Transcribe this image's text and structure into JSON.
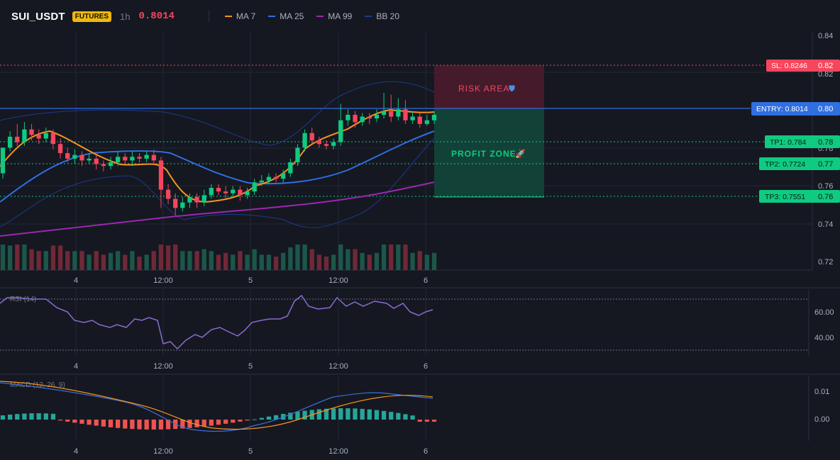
{
  "header": {
    "symbol": "SUI_USDT",
    "badge": "FUTURES",
    "timeframe": "1h",
    "price": "0.8014",
    "legend": [
      {
        "label": "MA 7",
        "color": "#f7931a"
      },
      {
        "label": "MA 25",
        "color": "#2f6fe0"
      },
      {
        "label": "MA 99",
        "color": "#9c27b0"
      },
      {
        "label": "BB 20",
        "color": "#1e3a8a"
      }
    ]
  },
  "main_axis": {
    "ticks": [
      "0.84",
      "0.82",
      "0.80",
      "0.78",
      "0.76",
      "0.74",
      "0.72"
    ]
  },
  "time_axis": {
    "labels": [
      "4",
      "12:00",
      "5",
      "12:00",
      "6"
    ]
  },
  "levels": {
    "sl": "SL: 0.8246",
    "sl_axis": "0.82",
    "entry": "ENTRY: 0.8014",
    "entry_axis": "0.80",
    "tp1": "TP1: 0.784",
    "tp1_axis": "0.78",
    "tp2": "TP2: 0.7724",
    "tp2_axis": "0.77",
    "tp3": "TP3: 0.7551",
    "tp3_axis": "0.76"
  },
  "zones": {
    "risk_label": "RISK AREA",
    "profit_label": "PROFIT ZONE"
  },
  "colors": {
    "up": "#0ecb81",
    "down": "#f6465d",
    "ma7": "#f7931a",
    "ma25": "#2f6fe0",
    "ma99": "#9c27b0",
    "bb": "#1e3a8a",
    "rsi": "#8a6bd1",
    "macd": "#3b6fd8",
    "signal": "#f7931a"
  },
  "rsi": {
    "label": "RSI (14)",
    "ticks": [
      "60.00",
      "40.00"
    ]
  },
  "macd": {
    "label": "MACD (12, 26, 9)",
    "ticks": [
      "0.01",
      "0.00"
    ]
  },
  "chart_data": {
    "type": "candlestick",
    "x_labels": [
      "4",
      "12:00",
      "5",
      "12:00",
      "6"
    ],
    "y_range": [
      0.715,
      0.845
    ],
    "candles": [
      [
        0.768,
        0.782,
        0.782,
        0.765
      ],
      [
        0.782,
        0.788,
        0.791,
        0.78
      ],
      [
        0.788,
        0.785,
        0.795,
        0.783
      ],
      [
        0.785,
        0.792,
        0.796,
        0.783
      ],
      [
        0.792,
        0.789,
        0.795,
        0.786
      ],
      [
        0.789,
        0.787,
        0.792,
        0.784
      ],
      [
        0.787,
        0.79,
        0.793,
        0.785
      ],
      [
        0.79,
        0.784,
        0.792,
        0.781
      ],
      [
        0.784,
        0.779,
        0.787,
        0.776
      ],
      [
        0.779,
        0.776,
        0.782,
        0.774
      ],
      [
        0.776,
        0.778,
        0.781,
        0.773
      ],
      [
        0.778,
        0.775,
        0.78,
        0.772
      ],
      [
        0.775,
        0.776,
        0.779,
        0.773
      ],
      [
        0.776,
        0.773,
        0.778,
        0.77
      ],
      [
        0.773,
        0.772,
        0.775,
        0.769
      ],
      [
        0.772,
        0.774,
        0.777,
        0.77
      ],
      [
        0.774,
        0.777,
        0.78,
        0.772
      ],
      [
        0.777,
        0.775,
        0.779,
        0.773
      ],
      [
        0.775,
        0.777,
        0.78,
        0.772
      ],
      [
        0.777,
        0.776,
        0.779,
        0.774
      ],
      [
        0.776,
        0.778,
        0.78,
        0.774
      ],
      [
        0.778,
        0.775,
        0.781,
        0.773
      ],
      [
        0.775,
        0.759,
        0.777,
        0.749
      ],
      [
        0.759,
        0.754,
        0.762,
        0.751
      ],
      [
        0.754,
        0.749,
        0.757,
        0.745
      ],
      [
        0.749,
        0.752,
        0.755,
        0.747
      ],
      [
        0.752,
        0.755,
        0.757,
        0.749
      ],
      [
        0.755,
        0.752,
        0.757,
        0.749
      ],
      [
        0.752,
        0.756,
        0.759,
        0.75
      ],
      [
        0.756,
        0.76,
        0.762,
        0.754
      ],
      [
        0.76,
        0.758,
        0.762,
        0.756
      ],
      [
        0.758,
        0.757,
        0.761,
        0.754
      ],
      [
        0.757,
        0.759,
        0.761,
        0.755
      ],
      [
        0.759,
        0.756,
        0.761,
        0.753
      ],
      [
        0.756,
        0.758,
        0.76,
        0.754
      ],
      [
        0.758,
        0.763,
        0.765,
        0.756
      ],
      [
        0.763,
        0.764,
        0.767,
        0.761
      ],
      [
        0.764,
        0.766,
        0.768,
        0.762
      ],
      [
        0.766,
        0.765,
        0.768,
        0.763
      ],
      [
        0.765,
        0.768,
        0.77,
        0.763
      ],
      [
        0.768,
        0.774,
        0.776,
        0.766
      ],
      [
        0.774,
        0.782,
        0.784,
        0.772
      ],
      [
        0.782,
        0.79,
        0.792,
        0.78
      ],
      [
        0.79,
        0.786,
        0.793,
        0.784
      ],
      [
        0.786,
        0.784,
        0.788,
        0.782
      ],
      [
        0.784,
        0.783,
        0.786,
        0.781
      ],
      [
        0.783,
        0.785,
        0.787,
        0.781
      ],
      [
        0.785,
        0.797,
        0.806,
        0.783
      ],
      [
        0.797,
        0.8,
        0.803,
        0.794
      ],
      [
        0.8,
        0.796,
        0.802,
        0.793
      ],
      [
        0.796,
        0.799,
        0.801,
        0.794
      ],
      [
        0.799,
        0.798,
        0.801,
        0.795
      ],
      [
        0.798,
        0.8,
        0.803,
        0.796
      ],
      [
        0.8,
        0.802,
        0.812,
        0.798
      ],
      [
        0.802,
        0.799,
        0.811,
        0.796
      ],
      [
        0.799,
        0.803,
        0.809,
        0.797
      ],
      [
        0.803,
        0.797,
        0.808,
        0.795
      ],
      [
        0.797,
        0.799,
        0.802,
        0.795
      ],
      [
        0.799,
        0.795,
        0.801,
        0.793
      ],
      [
        0.795,
        0.797,
        0.8,
        0.794
      ],
      [
        0.797,
        0.8,
        0.802,
        0.795
      ]
    ]
  }
}
